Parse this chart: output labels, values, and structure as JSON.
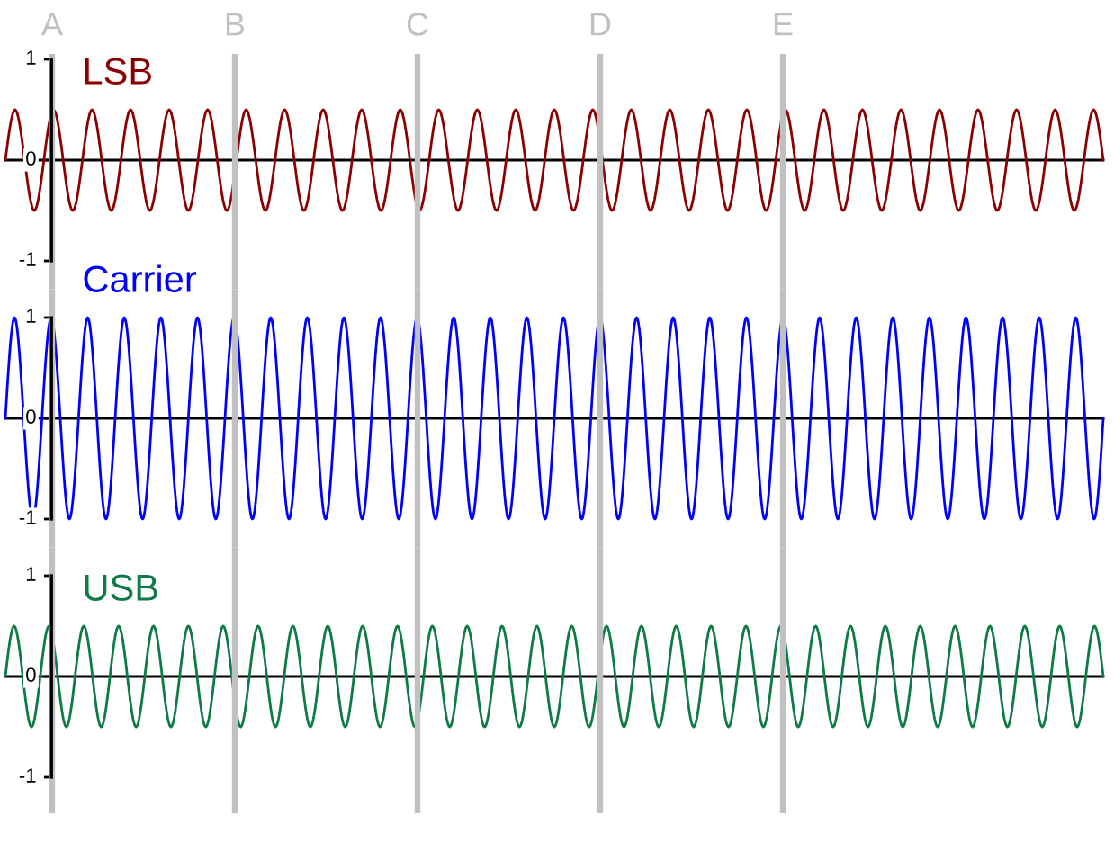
{
  "chart_data": [
    {
      "type": "line",
      "categories": [
        null,
        null,
        null,
        null,
        null,
        null,
        null,
        null,
        null,
        null,
        null,
        null,
        null,
        null,
        null,
        null,
        null,
        null,
        null,
        null,
        null,
        null,
        null,
        null,
        null,
        null,
        null,
        null,
        null,
        null,
        null,
        null,
        null,
        null,
        null,
        null,
        null,
        null,
        null,
        null,
        null,
        null,
        null,
        null,
        null,
        null,
        null,
        null,
        null,
        null,
        null,
        null,
        null,
        null,
        null,
        null,
        null,
        null,
        null,
        null,
        null,
        null,
        null,
        null,
        null,
        null,
        null,
        null,
        null,
        null,
        null,
        null,
        null,
        null,
        null,
        null,
        null,
        null,
        null,
        null,
        null,
        null,
        null,
        null,
        null,
        null,
        null,
        null,
        null,
        null,
        null,
        null,
        null,
        null,
        null,
        null,
        null,
        null,
        null,
        null,
        null,
        null,
        null,
        null,
        null,
        null,
        null,
        null,
        null,
        null,
        null,
        null,
        null,
        null,
        null
      ],
      "series": [
        {
          "name": "LSB",
          "color": "#8b0000",
          "values": [
            0,
            0.5,
            0,
            -0.5,
            0,
            0.5,
            0,
            -0.5,
            0,
            0.5,
            0,
            -0.5,
            0,
            0.5,
            0,
            -0.5,
            0,
            0.5,
            0,
            -0.5,
            0,
            0.5,
            0,
            -0.5,
            0,
            0.5,
            0,
            -0.5,
            0,
            0.5,
            0,
            -0.5,
            0,
            0.5,
            0,
            -0.5,
            0,
            0.5,
            0,
            -0.5,
            0,
            0.5,
            0,
            -0.5,
            0,
            0.5,
            0,
            -0.5,
            0,
            0.5,
            0,
            -0.5,
            0,
            0.5,
            0,
            -0.5,
            0,
            0.5,
            0,
            -0.5,
            0,
            0.5,
            0,
            -0.5,
            0,
            0.5,
            0,
            -0.5,
            0,
            0.5,
            0,
            -0.5,
            0,
            0.5,
            0,
            -0.5,
            0,
            0.5,
            0,
            -0.5,
            0,
            0.5,
            0,
            -0.5,
            0,
            0.5,
            0,
            -0.5,
            0,
            0.5,
            0,
            -0.5,
            0,
            0.5,
            0,
            -0.5,
            0,
            0.5,
            0,
            -0.5,
            0,
            0.5,
            0,
            -0.5,
            0,
            0.5,
            0,
            -0.5,
            0,
            0.5,
            0,
            -0.5,
            0,
            0.5,
            0
          ]
        }
      ],
      "ylim": [
        -1,
        1
      ],
      "yticks": [
        -1,
        0,
        1
      ],
      "tick_labels": "y",
      "annotations": [
        "A",
        "B",
        "C",
        "D",
        "E"
      ]
    },
    {
      "type": "line",
      "categories": [
        null,
        null,
        null,
        null,
        null,
        null,
        null,
        null,
        null,
        null,
        null,
        null,
        null,
        null,
        null,
        null,
        null,
        null,
        null,
        null,
        null,
        null,
        null,
        null,
        null,
        null,
        null,
        null,
        null,
        null,
        null,
        null,
        null,
        null,
        null,
        null,
        null,
        null,
        null,
        null,
        null,
        null,
        null,
        null,
        null,
        null,
        null,
        null,
        null,
        null,
        null,
        null,
        null,
        null,
        null,
        null,
        null,
        null,
        null,
        null,
        null,
        null,
        null,
        null,
        null,
        null,
        null,
        null,
        null,
        null,
        null,
        null,
        null,
        null,
        null,
        null,
        null,
        null,
        null,
        null,
        null,
        null,
        null,
        null,
        null,
        null,
        null,
        null,
        null,
        null,
        null,
        null,
        null,
        null,
        null,
        null,
        null,
        null,
        null,
        null,
        null,
        null,
        null,
        null,
        null,
        null,
        null,
        null,
        null,
        null,
        null,
        null,
        null,
        null,
        null,
        null,
        null,
        null,
        null,
        null,
        null
      ],
      "series": [
        {
          "name": "Carrier",
          "color": "#0000ff",
          "values": [
            0,
            1,
            0,
            -1,
            0,
            1,
            0,
            -1,
            0,
            1,
            0,
            -1,
            0,
            1,
            0,
            -1,
            0,
            1,
            0,
            -1,
            0,
            1,
            0,
            -1,
            0,
            1,
            0,
            -1,
            0,
            1,
            0,
            -1,
            0,
            1,
            0,
            -1,
            0,
            1,
            0,
            -1,
            0,
            1,
            0,
            -1,
            0,
            1,
            0,
            -1,
            0,
            1,
            0,
            -1,
            0,
            1,
            0,
            -1,
            0,
            1,
            0,
            -1,
            0,
            1,
            0,
            -1,
            0,
            1,
            0,
            -1,
            0,
            1,
            0,
            -1,
            0,
            1,
            0,
            -1,
            0,
            1,
            0,
            -1,
            0,
            1,
            0,
            -1,
            0,
            1,
            0,
            -1,
            0,
            1,
            0,
            -1,
            0,
            1,
            0,
            -1,
            0,
            1,
            0,
            -1,
            0,
            1,
            0,
            -1,
            0,
            1,
            0,
            -1,
            0,
            1,
            0,
            -1,
            0,
            1,
            0,
            -1,
            0,
            1,
            0,
            -1,
            0
          ]
        }
      ],
      "ylim": [
        -1,
        1
      ],
      "yticks": [
        -1,
        0,
        1
      ],
      "tick_labels": "y"
    },
    {
      "type": "line",
      "categories": [
        null,
        null,
        null,
        null,
        null,
        null,
        null,
        null,
        null,
        null,
        null,
        null,
        null,
        null,
        null,
        null,
        null,
        null,
        null,
        null,
        null,
        null,
        null,
        null,
        null,
        null,
        null,
        null,
        null,
        null,
        null,
        null,
        null,
        null,
        null,
        null,
        null,
        null,
        null,
        null,
        null,
        null,
        null,
        null,
        null,
        null,
        null,
        null,
        null,
        null,
        null,
        null,
        null,
        null,
        null,
        null,
        null,
        null,
        null,
        null,
        null,
        null,
        null,
        null,
        null,
        null,
        null,
        null,
        null,
        null,
        null,
        null,
        null,
        null,
        null,
        null,
        null,
        null,
        null,
        null,
        null,
        null,
        null,
        null,
        null,
        null,
        null,
        null,
        null,
        null,
        null,
        null,
        null,
        null,
        null,
        null,
        null,
        null,
        null,
        null,
        null,
        null,
        null,
        null,
        null,
        null,
        null,
        null,
        null,
        null,
        null,
        null,
        null,
        null,
        null,
        null,
        null,
        null,
        null,
        null,
        null,
        null,
        null,
        null,
        null,
        null,
        null
      ],
      "series": [
        {
          "name": "USB",
          "color": "#0e7a45",
          "values": [
            0,
            0.5,
            0,
            -0.5,
            0,
            0.5,
            0,
            -0.5,
            0,
            0.5,
            0,
            -0.5,
            0,
            0.5,
            0,
            -0.5,
            0,
            0.5,
            0,
            -0.5,
            0,
            0.5,
            0,
            -0.5,
            0,
            0.5,
            0,
            -0.5,
            0,
            0.5,
            0,
            -0.5,
            0,
            0.5,
            0,
            -0.5,
            0,
            0.5,
            0,
            -0.5,
            0,
            0.5,
            0,
            -0.5,
            0,
            0.5,
            0,
            -0.5,
            0,
            0.5,
            0,
            -0.5,
            0,
            0.5,
            0,
            -0.5,
            0,
            0.5,
            0,
            -0.5,
            0,
            0.5,
            0,
            -0.5,
            0,
            0.5,
            0,
            -0.5,
            0,
            0.5,
            0,
            -0.5,
            0,
            0.5,
            0,
            -0.5,
            0,
            0.5,
            0,
            -0.5,
            0,
            0.5,
            0,
            -0.5,
            0,
            0.5,
            0,
            -0.5,
            0,
            0.5,
            0,
            -0.5,
            0,
            0.5,
            0,
            -0.5,
            0,
            0.5,
            0,
            -0.5,
            0,
            0.5,
            0,
            -0.5,
            0,
            0.5,
            0,
            -0.5,
            0,
            0.5,
            0,
            -0.5,
            0,
            0.5,
            0,
            -0.5,
            0,
            0.5,
            0,
            -0.5,
            0,
            0.5,
            0,
            -0.5,
            0,
            0.5,
            0
          ]
        }
      ],
      "ylim": [
        -1,
        1
      ],
      "yticks": [
        -1,
        0,
        1
      ],
      "tick_labels": "y"
    }
  ]
}
